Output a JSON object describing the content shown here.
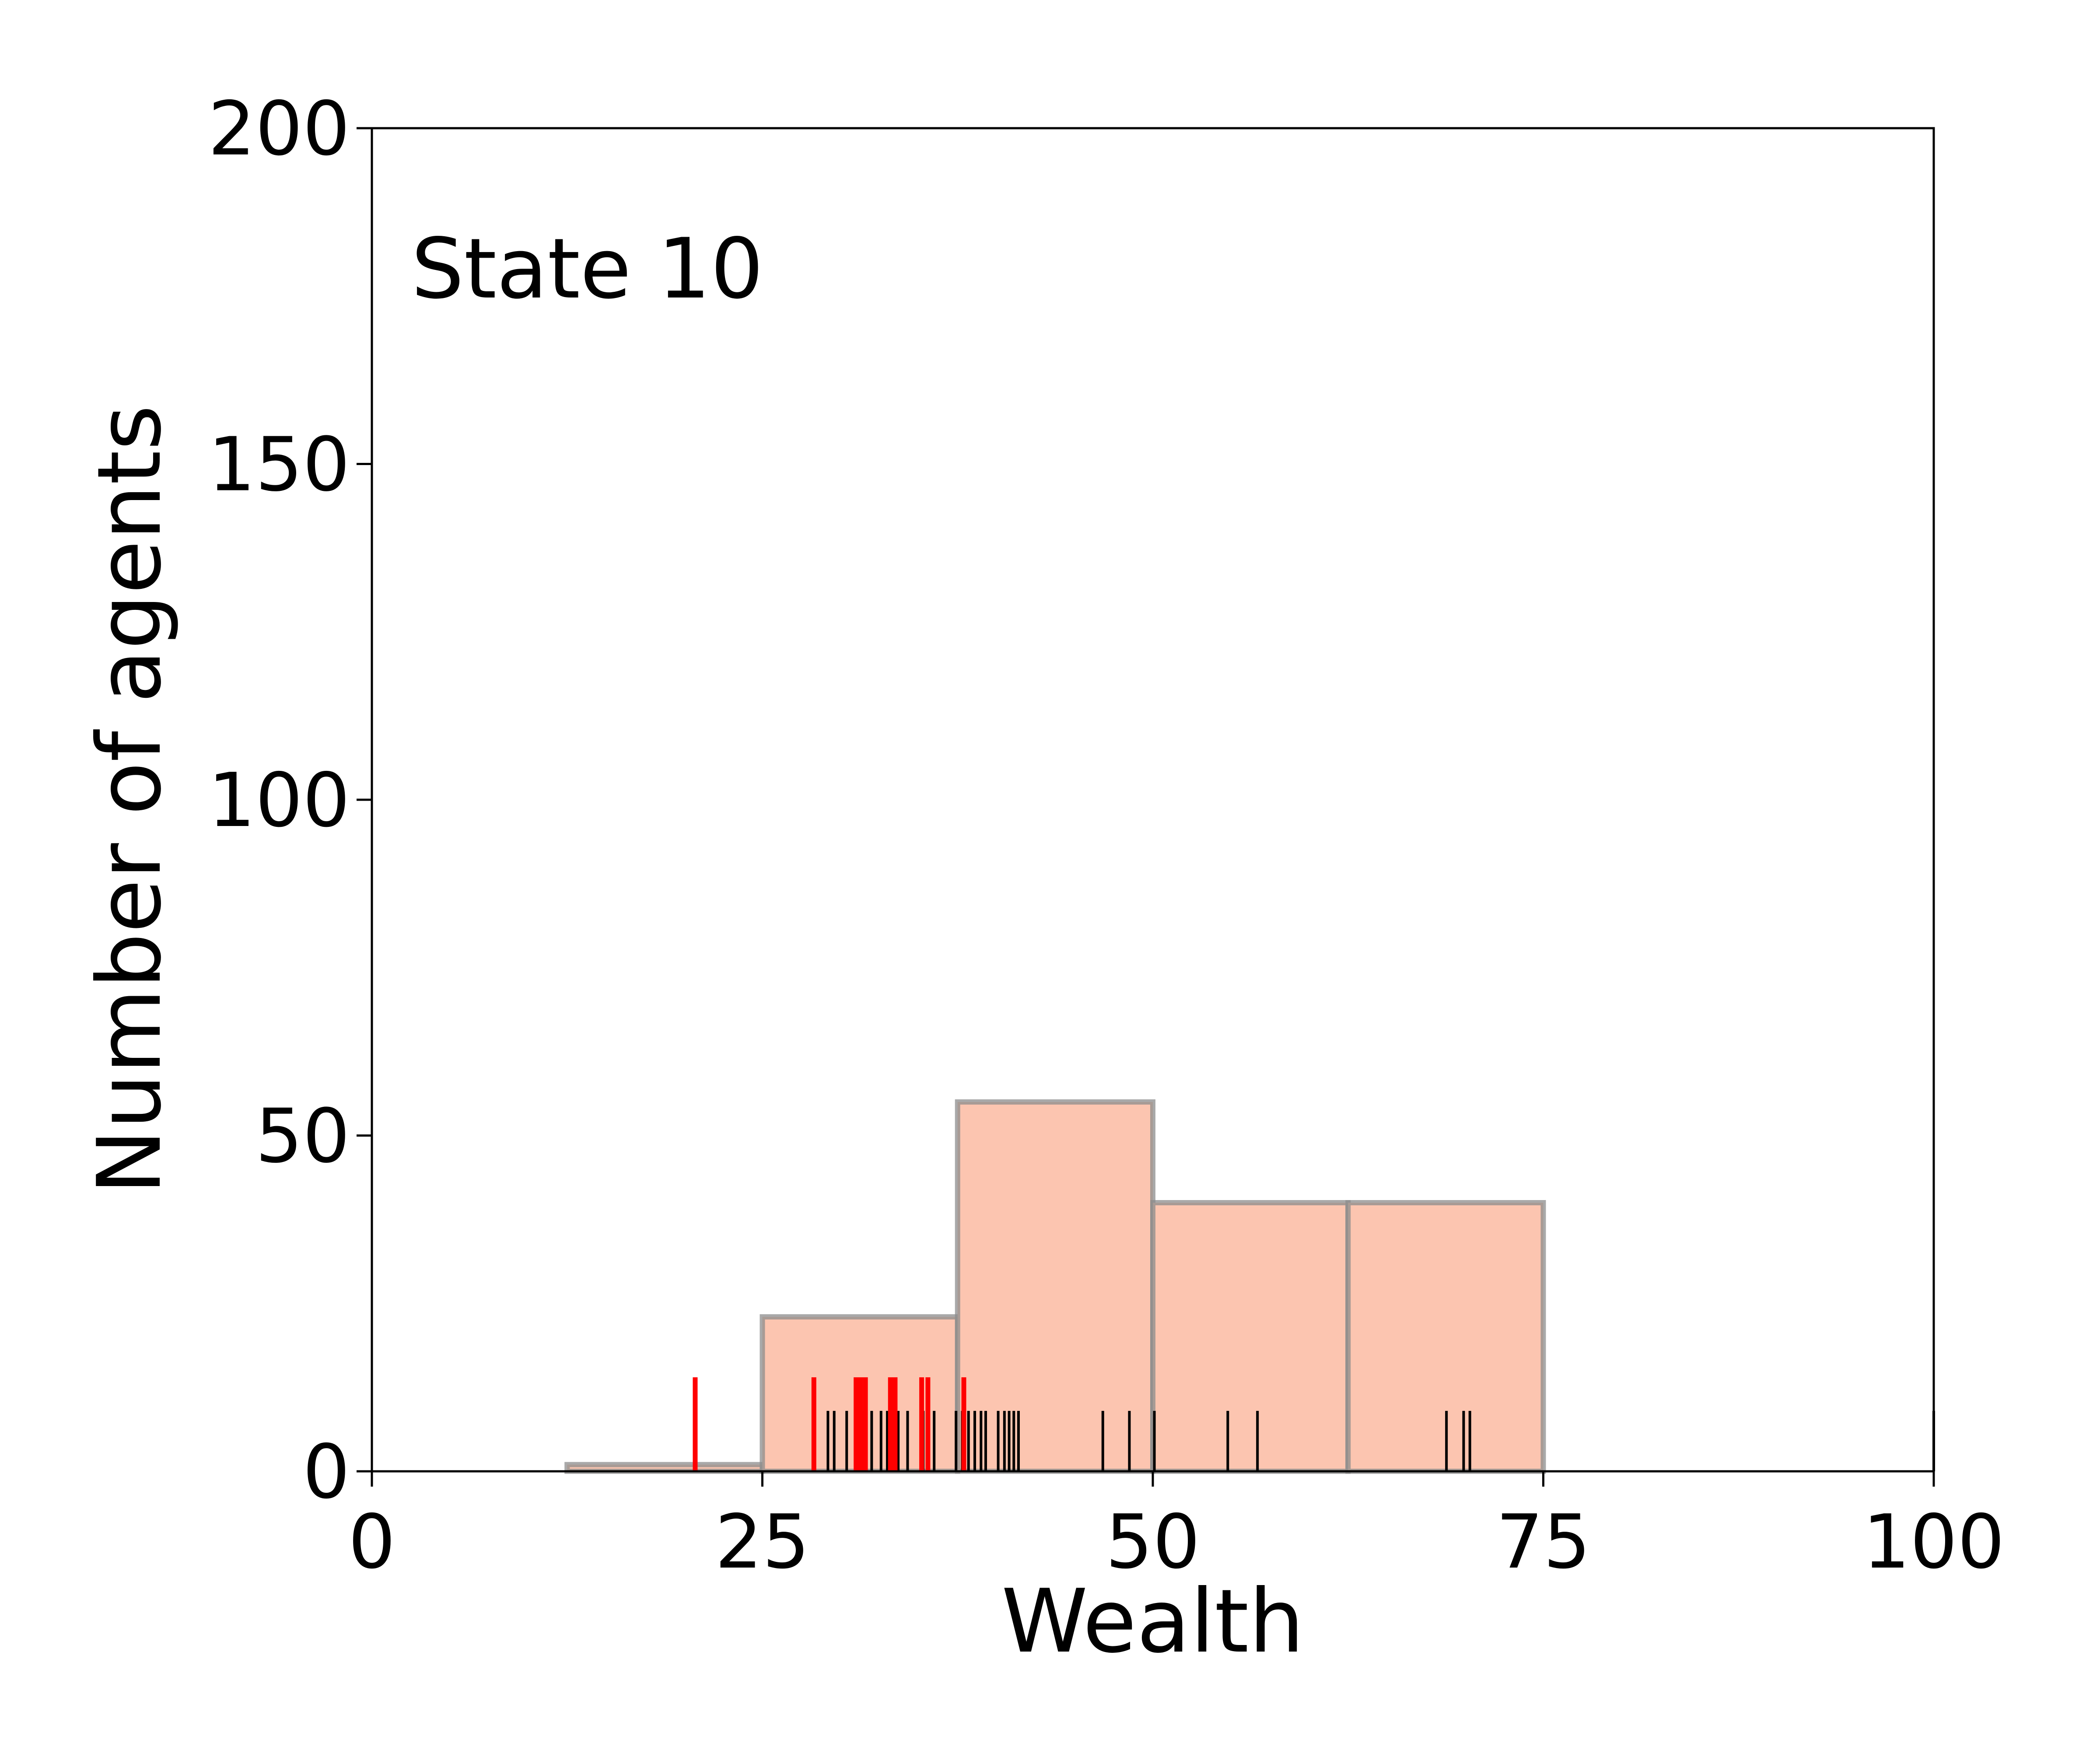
{
  "chart_data": {
    "type": "bar",
    "title": "",
    "annotation": "State 10",
    "xlabel": "Wealth",
    "ylabel": "Number of agents",
    "xlim": [
      0,
      100
    ],
    "ylim": [
      0,
      200
    ],
    "x_ticks": [
      "0",
      "25",
      "50",
      "75",
      "100"
    ],
    "y_ticks": [
      "0",
      "50",
      "100",
      "150",
      "200"
    ],
    "grid": false,
    "colors": {
      "bar_fill": "#fcc5b0",
      "bar_edge": "#8c8c8c",
      "rug_black": "#000000",
      "rug_red": "#ff0000"
    },
    "bins": [
      {
        "x0": 12.5,
        "x1": 25,
        "count": 1
      },
      {
        "x0": 25,
        "x1": 37.5,
        "count": 23
      },
      {
        "x0": 37.5,
        "x1": 50,
        "count": 55
      },
      {
        "x0": 50,
        "x1": 62.5,
        "count": 40
      },
      {
        "x0": 62.5,
        "x1": 75,
        "count": 40
      }
    ],
    "rug_black": {
      "height": 9,
      "values": [
        29.2,
        29.6,
        30.4,
        31.0,
        31.5,
        32.0,
        32.6,
        33.0,
        33.7,
        34.3,
        35.3,
        36.0,
        37.4,
        37.8,
        38.2,
        38.6,
        39.0,
        39.3,
        40.1,
        40.5,
        40.8,
        41.1,
        41.4,
        46.8,
        48.5,
        50.1,
        54.8,
        56.7,
        68.8,
        69.9,
        70.3,
        100.0
      ]
    },
    "rug_red": {
      "height": 14,
      "values": [
        20.7,
        28.3,
        31.0,
        31.3,
        31.6,
        33.2,
        33.5,
        35.2,
        35.6,
        37.9
      ]
    }
  }
}
